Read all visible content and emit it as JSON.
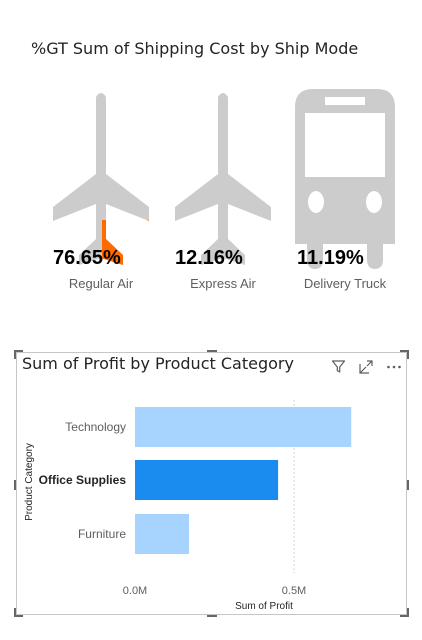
{
  "colors": {
    "fill": "#FF6A00",
    "empty": "#CCCCCC",
    "bar": "#A7D3FF",
    "bar_selected": "#1A8CF0"
  },
  "header": {
    "filter_icon": "filter-icon",
    "focus_icon": "focus-mode-icon",
    "more_icon": "more-options-icon"
  },
  "chart_data": [
    {
      "type": "bar",
      "title": "%GT Sum of Shipping Cost by Ship Mode",
      "categories": [
        "Regular Air",
        "Express Air",
        "Delivery Truck"
      ],
      "values": [
        76.65,
        12.16,
        11.19
      ],
      "value_labels": [
        "76.65%",
        "12.16%",
        "11.19%"
      ],
      "icons": [
        "airplane-icon",
        "airplane-icon",
        "truck-icon"
      ],
      "unit": "%"
    },
    {
      "type": "bar",
      "orientation": "horizontal",
      "title": "Sum of Profit by Product Category",
      "categories": [
        "Technology",
        "Office Supplies",
        "Furniture"
      ],
      "values": [
        0.68,
        0.45,
        0.17
      ],
      "selected": "Office Supplies",
      "xlabel": "Sum of Profit",
      "ylabel": "Product Category",
      "x_ticks": [
        "0.0M",
        "0.5M"
      ],
      "tick_values": [
        0,
        0.5
      ],
      "xlim": [
        0,
        0.7
      ]
    }
  ]
}
